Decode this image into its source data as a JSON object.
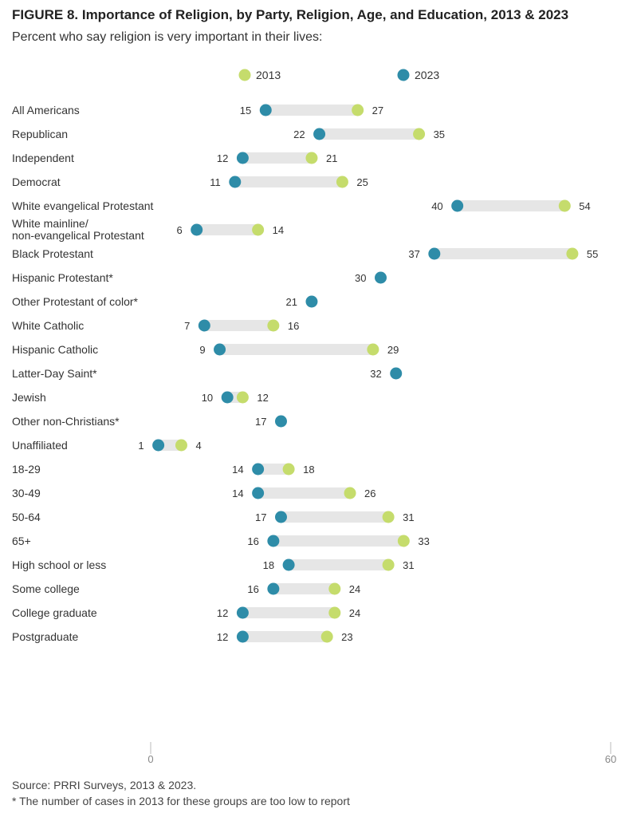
{
  "header": {
    "title": "FIGURE 8. Importance of Religion, by Party, Religion, Age, and Education, 2013 & 2023",
    "subtitle": "Percent who say religion is very important in their lives:"
  },
  "footer": {
    "source": "Source: PRRI Surveys, 2013 & 2023.",
    "note": "* The number of cases in 2013 for these groups are too low to report"
  },
  "chart_data": {
    "type": "dumbbell",
    "xlim": [
      0,
      60
    ],
    "x_ticks": [
      "0",
      "60"
    ],
    "legend": [
      {
        "name": "2013",
        "color": "#c5dc6c"
      },
      {
        "name": "2023",
        "color": "#2e8ca8"
      }
    ],
    "groups": [
      {
        "rows": [
          {
            "label": "All Americans",
            "v2023": 15,
            "v2013": 27
          }
        ]
      },
      {
        "rows": [
          {
            "label": "Republican",
            "v2023": 22,
            "v2013": 35
          },
          {
            "label": "Independent",
            "v2023": 12,
            "v2013": 21
          },
          {
            "label": "Democrat",
            "v2023": 11,
            "v2013": 25
          }
        ]
      },
      {
        "rows": [
          {
            "label": "White evangelical Protestant",
            "v2023": 40,
            "v2013": 54
          },
          {
            "label": [
              "White mainline/",
              "non-evangelical Protestant"
            ],
            "v2023": 6,
            "v2013": 14
          },
          {
            "label": "Black Protestant",
            "v2023": 37,
            "v2013": 55
          },
          {
            "label": "Hispanic Protestant*",
            "v2023": 30,
            "v2013": null
          },
          {
            "label": "Other Protestant of color*",
            "v2023": 21,
            "v2013": null
          },
          {
            "label": "White Catholic",
            "v2023": 7,
            "v2013": 16
          },
          {
            "label": "Hispanic Catholic",
            "v2023": 9,
            "v2013": 29
          },
          {
            "label": "Latter-Day Saint*",
            "v2023": 32,
            "v2013": null
          },
          {
            "label": "Jewish",
            "v2023": 10,
            "v2013": 12
          },
          {
            "label": "Other non-Christians*",
            "v2023": 17,
            "v2013": null
          },
          {
            "label": "Unaffiliated",
            "v2023": 1,
            "v2013": 4
          }
        ]
      },
      {
        "rows": [
          {
            "label": "18-29",
            "v2023": 14,
            "v2013": 18
          },
          {
            "label": "30-49",
            "v2023": 14,
            "v2013": 26
          },
          {
            "label": "50-64",
            "v2023": 17,
            "v2013": 31
          },
          {
            "label": "65+",
            "v2023": 16,
            "v2013": 33
          }
        ]
      },
      {
        "rows": [
          {
            "label": "High school or less",
            "v2023": 18,
            "v2013": 31
          },
          {
            "label": "Some college",
            "v2023": 16,
            "v2013": 24
          },
          {
            "label": "College graduate",
            "v2023": 12,
            "v2013": 24
          },
          {
            "label": "Postgraduate",
            "v2023": 12,
            "v2013": 23
          }
        ]
      }
    ]
  }
}
